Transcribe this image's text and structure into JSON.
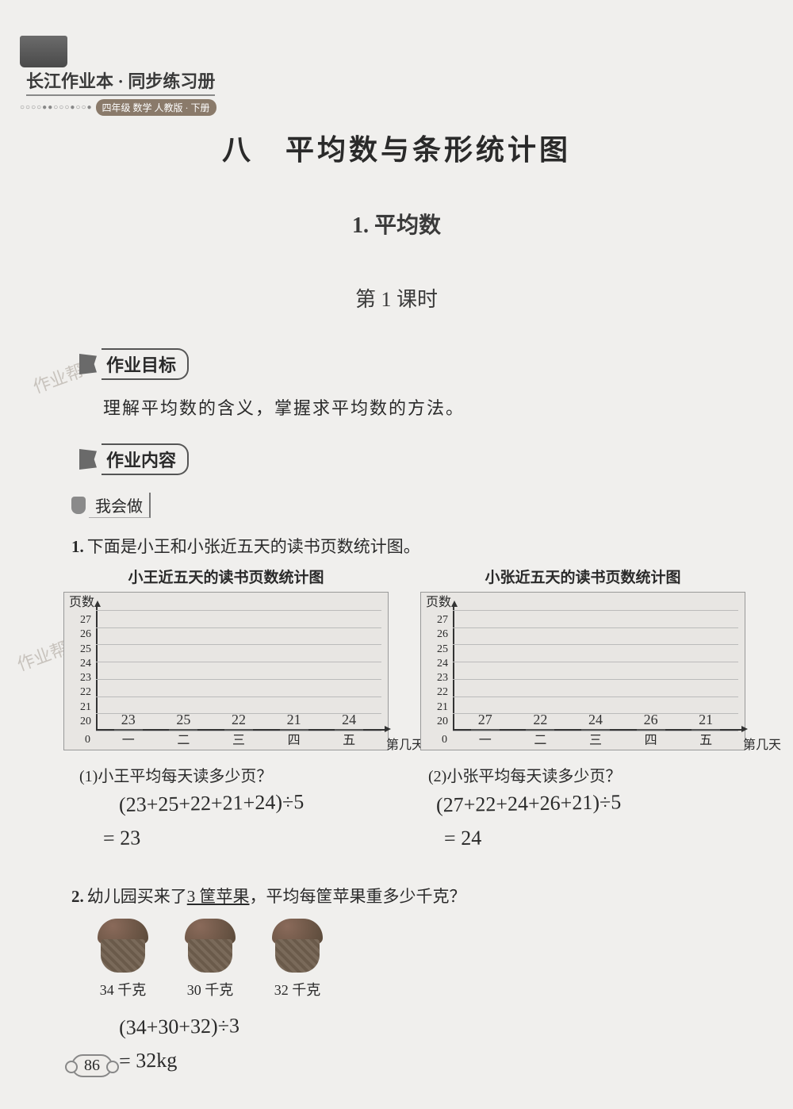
{
  "header": {
    "series": "长江作业本 · 同步练习册",
    "grade_badge": "四年级 数学 人教版 · 下册",
    "dots": "○○○○●●○○○●○○●"
  },
  "chapter_title": "八　平均数与条形统计图",
  "section_title": "1. 平均数",
  "lesson_title": "第 1 课时",
  "goal_tag": "作业目标",
  "goal_text": "理解平均数的含义，掌握求平均数的方法。",
  "content_tag": "作业内容",
  "sub_tag": "我会做",
  "q1": {
    "prefix": "1.",
    "text": "下面是小王和小张近五天的读书页数统计图。"
  },
  "chart_common": {
    "y_label": "页数",
    "x_label": "第几天",
    "y_ticks": [
      "27",
      "26",
      "25",
      "24",
      "23",
      "22",
      "21",
      "20"
    ],
    "y_min": 20,
    "y_max": 27,
    "zero_label": "0",
    "x_ticks": [
      "一",
      "二",
      "三",
      "四",
      "五"
    ],
    "bar_color": "#8f8a85",
    "grid_color": "#bbbbbb",
    "background": "#e8e6e3"
  },
  "chart_wang": {
    "title": "小王近五天的读书页数统计图",
    "values": [
      23,
      25,
      22,
      21,
      24
    ],
    "handwritten_values": [
      "23",
      "25",
      "22",
      "21",
      "24"
    ]
  },
  "chart_zhang": {
    "title": "小张近五天的读书页数统计图",
    "values": [
      27,
      22,
      24,
      26,
      21
    ],
    "handwritten_values": [
      "27",
      "22",
      "24",
      "26",
      "21"
    ]
  },
  "subq1": {
    "text": "(1)小王平均每天读多少页？",
    "hand1": "(23+25+22+21+24)÷5",
    "hand2": "= 23"
  },
  "subq2": {
    "text": "(2)小张平均每天读多少页？",
    "hand1": "(27+22+24+26+21)÷5",
    "hand2": "= 24"
  },
  "q2": {
    "prefix": "2.",
    "text_a": "幼儿园买来了",
    "text_underline": "3 筐苹果",
    "text_b": "，平均每筐苹果重多少千克？",
    "baskets": [
      {
        "label": "34 千克"
      },
      {
        "label": "30 千克"
      },
      {
        "label": "32 千克"
      }
    ],
    "hand1": "(34+30+32)÷3",
    "hand2": "= 32kg"
  },
  "watermark_text": "作业帮",
  "page_number": "86"
}
